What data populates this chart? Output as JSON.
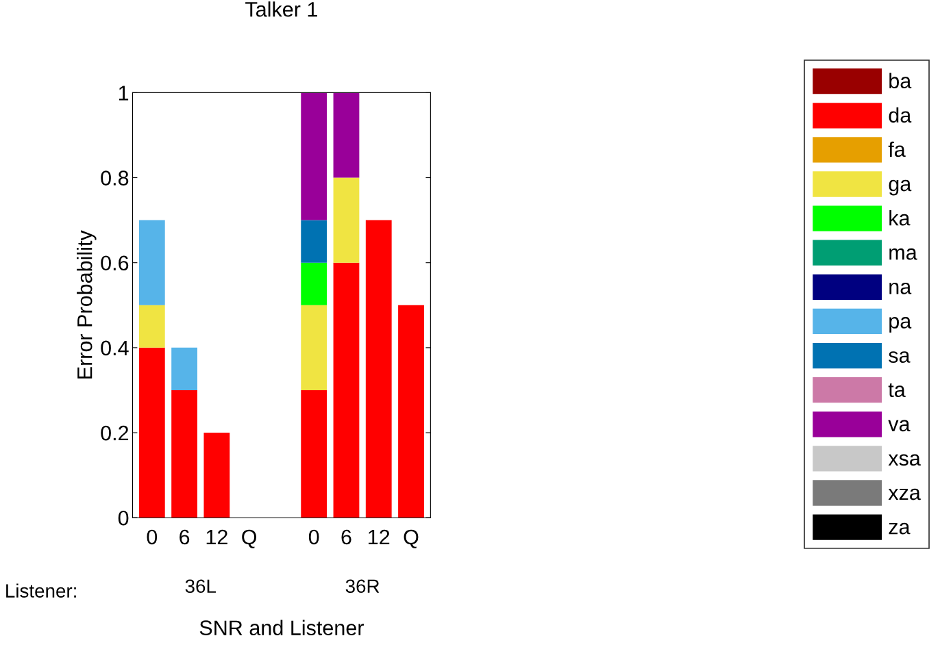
{
  "chart_data": {
    "type": "bar",
    "stacked": true,
    "title": "Talker 1",
    "xlabel": "SNR and Listener",
    "ylabel": "Error Probability",
    "categories": [
      "0",
      "6",
      "12",
      "Q",
      null,
      "0",
      "6",
      "12",
      "Q"
    ],
    "ylim": [
      0,
      1
    ],
    "yticks": [
      0,
      {
        "value": 0.2,
        "label": "0.2"
      },
      {
        "value": 0.4,
        "label": "0.4"
      },
      {
        "value": 0.6,
        "label": "0.6"
      },
      {
        "value": 0.8,
        "label": "0.8"
      },
      1
    ],
    "legend": "right",
    "grid": false,
    "annotations": [
      "Listener:",
      "36L",
      "36R"
    ],
    "series": [
      {
        "name": "ba",
        "color": "#990000",
        "values": [
          0,
          0,
          0,
          0,
          null,
          0,
          0,
          0,
          0
        ]
      },
      {
        "name": "da",
        "color": "#ff0000",
        "values": [
          0.4,
          0.3,
          0.2,
          0,
          null,
          0.3,
          0.6,
          0.7,
          0.5
        ]
      },
      {
        "name": "fa",
        "color": "#e69f00",
        "values": [
          0,
          0,
          0,
          0,
          null,
          0,
          0,
          0,
          0
        ]
      },
      {
        "name": "ga",
        "color": "#f0e442",
        "values": [
          0.1,
          0,
          0,
          0,
          null,
          0.2,
          0.2,
          0,
          0
        ]
      },
      {
        "name": "ka",
        "color": "#00ff00",
        "values": [
          0,
          0,
          0,
          0,
          null,
          0.1,
          0,
          0,
          0
        ]
      },
      {
        "name": "ma",
        "color": "#009e73",
        "values": [
          0,
          0,
          0,
          0,
          null,
          0,
          0,
          0,
          0
        ]
      },
      {
        "name": "na",
        "color": "#000080",
        "values": [
          0,
          0,
          0,
          0,
          null,
          0,
          0,
          0,
          0
        ]
      },
      {
        "name": "pa",
        "color": "#56b4e9",
        "values": [
          0.2,
          0.1,
          0,
          0,
          null,
          0,
          0,
          0,
          0
        ]
      },
      {
        "name": "sa",
        "color": "#0072b2",
        "values": [
          0,
          0,
          0,
          0,
          null,
          0.1,
          0,
          0,
          0
        ]
      },
      {
        "name": "ta",
        "color": "#cc79a7",
        "values": [
          0,
          0,
          0,
          0,
          null,
          0,
          0,
          0,
          0
        ]
      },
      {
        "name": "va",
        "color": "#990099",
        "values": [
          0,
          0,
          0,
          0,
          null,
          0.3,
          0.2,
          0,
          0
        ]
      },
      {
        "name": "xsa",
        "color": "#c8c8c8",
        "values": [
          0,
          0,
          0,
          0,
          null,
          0,
          0,
          0,
          0
        ]
      },
      {
        "name": "xza",
        "color": "#7a7a7a",
        "values": [
          0,
          0,
          0,
          0,
          null,
          0,
          0,
          0,
          0
        ]
      },
      {
        "name": "za",
        "color": "#000000",
        "values": [
          0,
          0,
          0,
          0,
          null,
          0,
          0,
          0,
          0
        ]
      }
    ]
  }
}
